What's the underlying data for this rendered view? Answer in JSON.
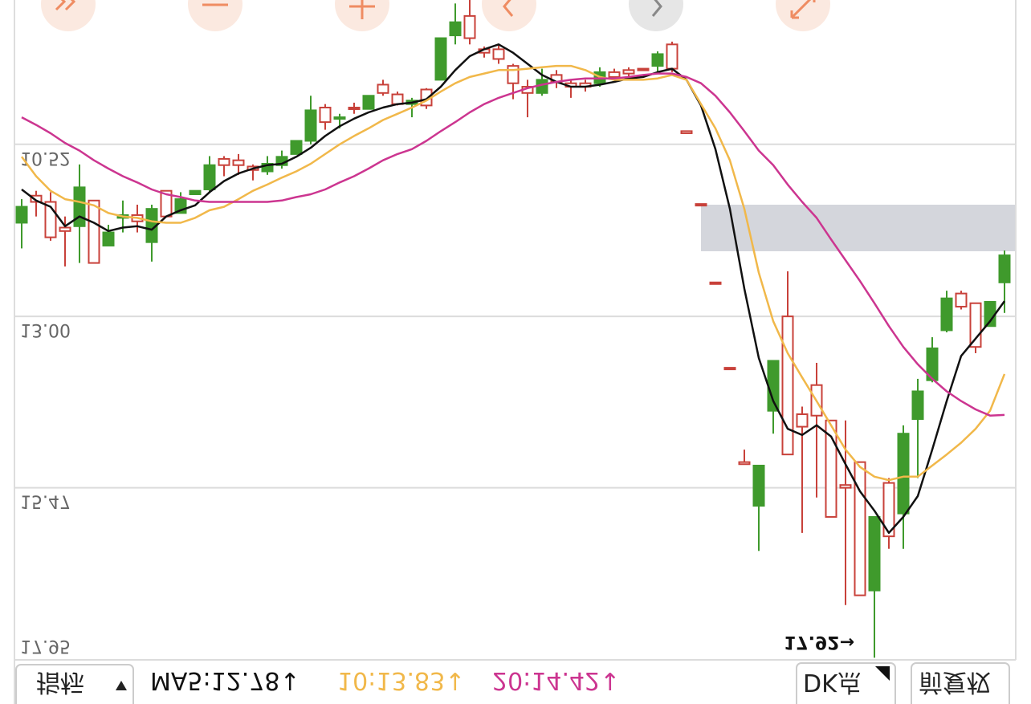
{
  "chart_data": {
    "type": "candlestick",
    "ylim": [
      8.44,
      17.95
    ],
    "yticks": [
      17.95,
      15.47,
      {
        "value": 13,
        "label": "13.00"
      },
      10.52
    ],
    "grid": true,
    "up_color": "#c8413a",
    "down_color": "#3f9a2c",
    "candles": {
      "open": [
        11.65,
        11.26,
        11.35,
        11.72,
        11.7,
        11.33,
        11.98,
        11.58,
        11.54,
        11.93,
        11.19,
        11.51,
        11.24,
        11.17,
        10.73,
        10.75,
        10.84,
        10.91,
        10.82,
        10.66,
        10.47,
        9.99,
        10.15,
        9.99,
        10.01,
        9.66,
        9.8,
        9.94,
        9.73,
        9.59,
        8.95,
        8.67,
        9.15,
        9.15,
        9.39,
        9.69,
        9.78,
        9.52,
        9.64,
        9.64,
        9.64,
        9.48,
        9.45,
        9.43,
        9.39,
        9.08,
        10.33,
        11.38,
        12.51,
        13.74,
        15.1,
        15.73,
        14.36,
        13.0,
        14.41,
        13.99,
        14.5,
        15.43,
        15.1,
        16.95,
        15.4,
        15.84,
        14.48,
        13.92,
        13.2,
        12.67,
        12.81,
        13.14,
        12.51
      ],
      "high": [
        12.02,
        11.56,
        11.91,
        12.28,
        12.23,
        12.23,
        11.98,
        11.79,
        11.79,
        12.21,
        11.56,
        11.51,
        11.24,
        11.21,
        10.98,
        10.96,
        11.04,
        10.96,
        10.87,
        10.66,
        10.52,
        10.31,
        10.29,
        10.08,
        10.01,
        9.82,
        9.96,
        10.13,
        10.01,
        9.59,
        9.08,
        9.08,
        9.27,
        9.36,
        9.87,
        10.13,
        9.82,
        9.71,
        9.85,
        9.76,
        9.69,
        9.59,
        9.59,
        9.45,
        9.48,
        9.48,
        10.36,
        11.4,
        12.53,
        13.76,
        15.13,
        16.38,
        14.69,
        14.99,
        16.12,
        15.61,
        15.89,
        17.16,
        17.02,
        17.92,
        16.35,
        16.35,
        15.33,
        13.95,
        13.23,
        12.9,
        13.53,
        13.14,
        12.95
      ],
      "low": [
        11.31,
        11.19,
        11.21,
        11.56,
        10.81,
        11.33,
        11.68,
        11.33,
        11.39,
        11.39,
        11.19,
        11.21,
        11.19,
        10.69,
        10.69,
        10.66,
        10.81,
        10.69,
        10.61,
        10.47,
        9.82,
        9.94,
        10.08,
        9.92,
        9.82,
        9.59,
        9.76,
        9.85,
        9.71,
        8.99,
        8.49,
        8.44,
        9.11,
        9.08,
        9.36,
        9.59,
        9.43,
        9.45,
        9.59,
        9.59,
        9.41,
        9.43,
        9.41,
        9.43,
        9.18,
        9.04,
        10.33,
        11.38,
        12.51,
        13.74,
        14.92,
        15.15,
        13.64,
        12.35,
        14.3,
        13.67,
        14.5,
        14.5,
        15.1,
        15.89,
        15.33,
        14.57,
        13.9,
        13.3,
        12.63,
        12.63,
        12.81,
        12.79,
        12.05
      ],
      "close": [
        11.42,
        11.35,
        11.86,
        11.77,
        11.14,
        12.23,
        11.79,
        11.54,
        11.63,
        11.45,
        11.56,
        11.31,
        11.19,
        10.82,
        10.82,
        10.82,
        10.89,
        10.8,
        10.7,
        10.47,
        10.03,
        10.2,
        10.13,
        10.01,
        9.82,
        9.78,
        9.94,
        9.89,
        9.96,
        8.99,
        8.76,
        8.99,
        9.2,
        9.29,
        9.64,
        9.78,
        9.59,
        9.62,
        9.69,
        9.69,
        9.48,
        9.55,
        9.5,
        9.45,
        9.22,
        9.43,
        10.36,
        11.4,
        12.53,
        13.76,
        15.13,
        15.15,
        13.64,
        14.99,
        14.59,
        14.43,
        15.89,
        15.47,
        17.02,
        15.89,
        16.17,
        14.69,
        14.08,
        13.46,
        12.74,
        12.86,
        13.44,
        12.79,
        12.12
      ]
    },
    "moving_averages": [
      {
        "color": "#111111",
        "values": [
          11.17,
          11.33,
          11.42,
          11.7,
          11.56,
          11.65,
          11.77,
          11.72,
          11.7,
          11.75,
          11.56,
          11.47,
          11.4,
          11.21,
          11.05,
          10.94,
          10.87,
          10.82,
          10.8,
          10.7,
          10.57,
          10.4,
          10.26,
          10.15,
          10.06,
          9.99,
          9.94,
          9.92,
          9.87,
          9.69,
          9.45,
          9.25,
          9.15,
          9.08,
          9.2,
          9.36,
          9.52,
          9.62,
          9.69,
          9.69,
          9.66,
          9.62,
          9.57,
          9.55,
          9.48,
          9.43,
          9.59,
          9.96,
          10.59,
          11.45,
          12.6,
          13.6,
          14.22,
          14.62,
          14.71,
          14.57,
          14.73,
          15.13,
          15.52,
          15.8,
          16.12,
          15.89,
          15.59,
          14.92,
          14.22,
          13.57,
          13.32,
          13.07,
          12.78
        ]
      },
      {
        "color": "#f1b84a",
        "values": [
          10.7,
          10.98,
          11.19,
          11.31,
          11.35,
          11.4,
          11.51,
          11.56,
          11.58,
          11.63,
          11.65,
          11.65,
          11.58,
          11.47,
          11.42,
          11.31,
          11.19,
          11.1,
          11.0,
          10.91,
          10.8,
          10.66,
          10.52,
          10.4,
          10.29,
          10.17,
          10.08,
          9.99,
          9.89,
          9.76,
          9.64,
          9.55,
          9.5,
          9.45,
          9.45,
          9.43,
          9.41,
          9.39,
          9.39,
          9.45,
          9.55,
          9.59,
          9.59,
          9.59,
          9.57,
          9.52,
          9.59,
          9.94,
          10.29,
          10.75,
          11.45,
          12.37,
          13.07,
          13.53,
          13.88,
          14.22,
          14.57,
          14.92,
          15.17,
          15.31,
          15.36,
          15.31,
          15.31,
          15.15,
          14.99,
          14.82,
          14.62,
          14.36,
          13.83
        ]
      },
      {
        "color": "#cc3590",
        "values": [
          10.13,
          10.24,
          10.36,
          10.5,
          10.61,
          10.75,
          10.87,
          10.98,
          11.07,
          11.17,
          11.24,
          11.28,
          11.33,
          11.35,
          11.35,
          11.35,
          11.35,
          11.35,
          11.33,
          11.28,
          11.24,
          11.17,
          11.07,
          10.98,
          10.87,
          10.75,
          10.66,
          10.59,
          10.47,
          10.33,
          10.2,
          10.06,
          9.94,
          9.85,
          9.78,
          9.71,
          9.66,
          9.62,
          9.59,
          9.57,
          9.57,
          9.57,
          9.55,
          9.52,
          9.5,
          9.5,
          9.55,
          9.64,
          9.82,
          10.06,
          10.33,
          10.61,
          10.82,
          11.1,
          11.35,
          11.58,
          11.89,
          12.19,
          12.49,
          12.81,
          13.14,
          13.44,
          13.69,
          13.9,
          14.08,
          14.22,
          14.34,
          14.43,
          14.42
        ]
      }
    ],
    "legend": [
      "MA5:12.78↓",
      "10:13.83↓",
      "20:14.42↓"
    ],
    "annotation": "17.92→",
    "controls": {
      "indicator": "指标",
      "dk": "DK点",
      "adjust": "前复权"
    }
  }
}
